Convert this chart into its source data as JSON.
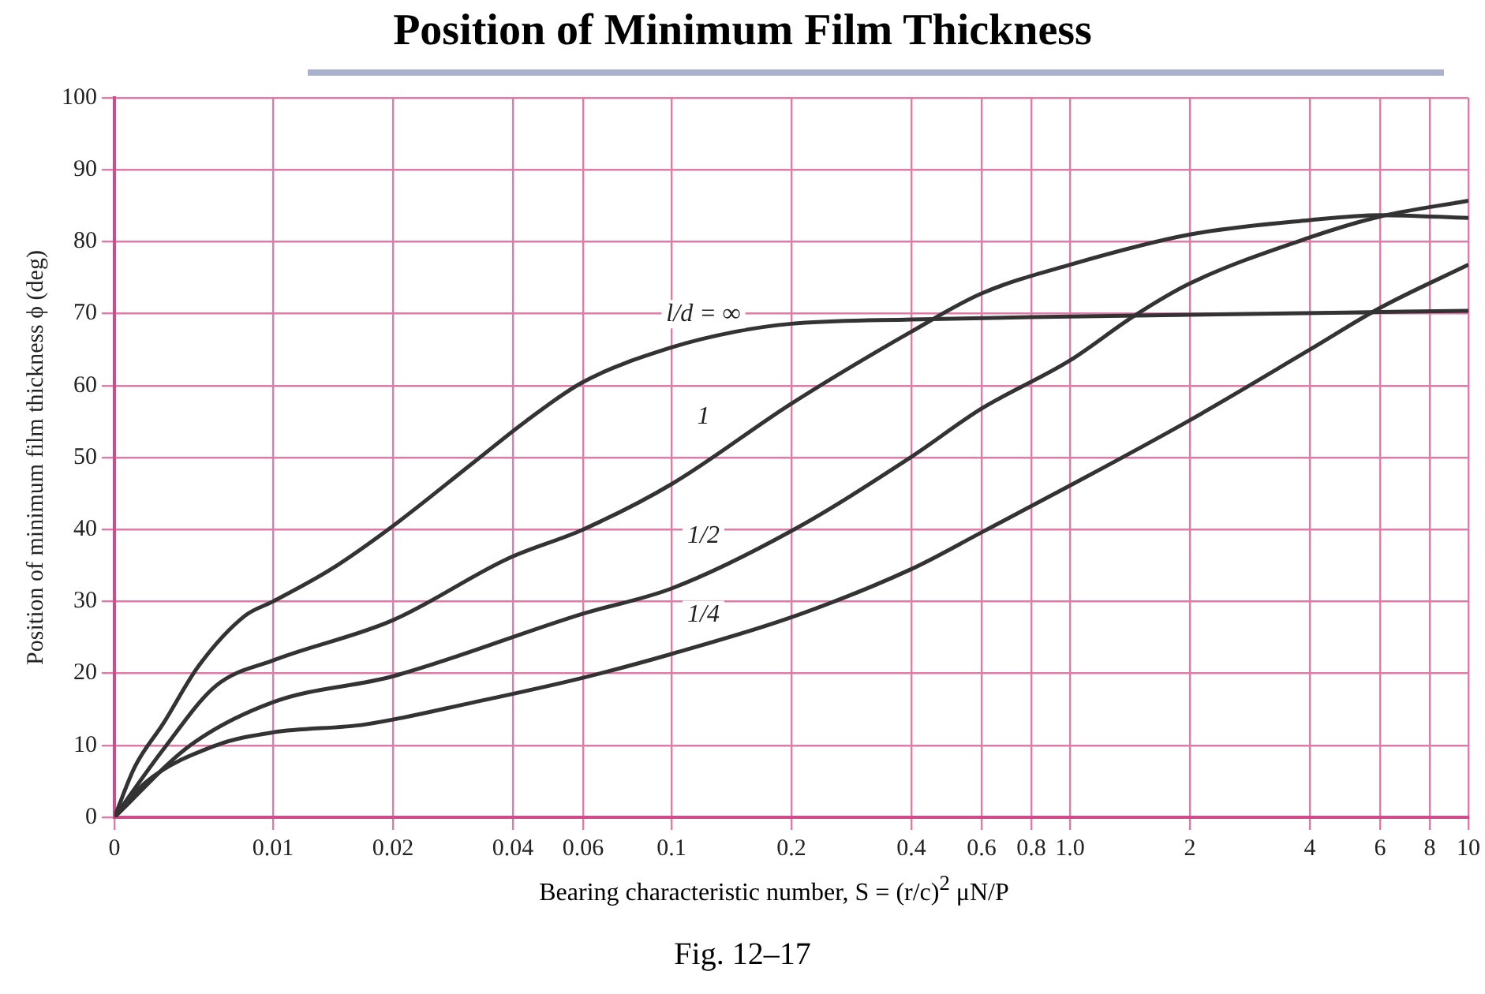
{
  "chart_data": {
    "type": "line",
    "title": "Position of Minimum Film Thickness",
    "xlabel": "Bearing characteristic number, S = (r/c)$^{2}$ μN/P",
    "ylabel": "Position of minimum film thickness ϕ (deg)",
    "log": "x",
    "xlim": [
      0.004,
      10
    ],
    "xticks": [
      {
        "value": 0.004,
        "label": "0"
      },
      0.01,
      0.02,
      0.04,
      0.06,
      0.1,
      0.2,
      0.4,
      0.6,
      0.8,
      {
        "value": 1,
        "label": "1.0"
      },
      2,
      4,
      6,
      8,
      10
    ],
    "ylim": [
      0,
      100
    ],
    "yticks": [
      0,
      10,
      20,
      30,
      40,
      50,
      60,
      70,
      80,
      90,
      100
    ],
    "grid": true,
    "legend": false,
    "marker": "none",
    "line_style": "solid",
    "series": [
      {
        "name": "l/d = ∞",
        "color": "#333333",
        "x": [
          0.004,
          0.0045,
          0.0053,
          0.0065,
          0.0085,
          0.01,
          0.014,
          0.02,
          0.032,
          0.043,
          0.06,
          0.1,
          0.145,
          0.2,
          0.4,
          1,
          10
        ],
        "values": [
          0,
          7,
          13,
          21,
          28,
          30,
          34.5,
          40.5,
          49.4,
          55,
          60.5,
          65.3,
          67.5,
          68.6,
          69.2,
          69.6,
          70.4
        ]
      },
      {
        "name": "1",
        "color": "#333333",
        "x": [
          0.004,
          0.0053,
          0.0072,
          0.01,
          0.02,
          0.039,
          0.06,
          0.1,
          0.2,
          0.4,
          0.6,
          1,
          2,
          4,
          6,
          10
        ],
        "values": [
          0,
          9.4,
          18.3,
          21.8,
          27.4,
          36,
          40,
          46.3,
          57.5,
          67.5,
          72.8,
          76.8,
          81,
          83,
          83.7,
          83.3
        ]
      },
      {
        "name": "1/2",
        "color": "#333333",
        "x": [
          0.004,
          0.0062,
          0.01,
          0.02,
          0.06,
          0.1,
          0.2,
          0.4,
          0.6,
          1,
          1.45,
          2,
          4,
          6,
          10
        ],
        "values": [
          0,
          10,
          16,
          19.6,
          28.3,
          31.8,
          39.8,
          50.1,
          56.8,
          63.5,
          69.7,
          74.2,
          80.6,
          83.5,
          85.7
        ]
      },
      {
        "name": "1/4",
        "color": "#333333",
        "x": [
          0.004,
          0.0048,
          0.0072,
          0.01,
          0.017,
          0.032,
          0.06,
          0.1,
          0.2,
          0.4,
          0.6,
          1,
          2,
          4,
          6,
          10
        ],
        "values": [
          0,
          4.9,
          10,
          11.8,
          12.9,
          16,
          19.4,
          22.7,
          27.8,
          34.5,
          39.6,
          46.1,
          55.2,
          65,
          70.8,
          76.8
        ]
      }
    ],
    "annotations": [
      "Fig. 12–17"
    ]
  }
}
